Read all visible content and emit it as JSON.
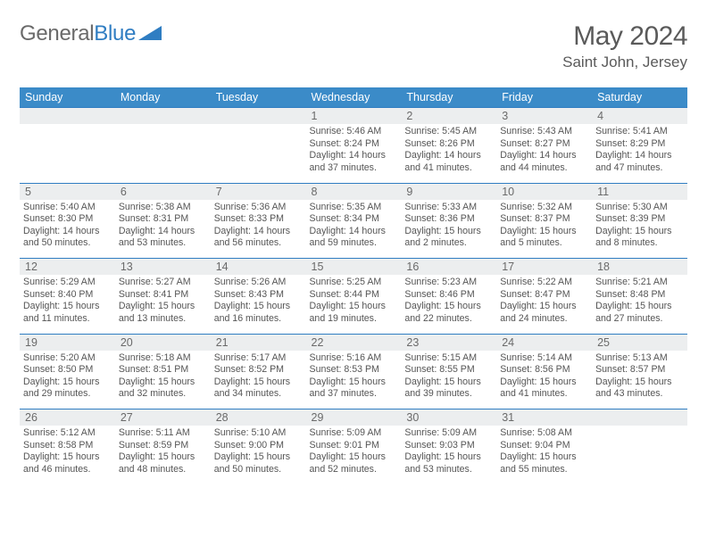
{
  "brand": {
    "part1": "General",
    "part2": "Blue"
  },
  "title": "May 2024",
  "location": "Saint John, Jersey",
  "colors": {
    "header_bg": "#3b8bc8",
    "border": "#2f7dc2",
    "daynum_bg": "#eceeef",
    "text_muted": "#6a6a6a",
    "text_body": "#555555",
    "white": "#ffffff"
  },
  "weekdays": [
    "Sunday",
    "Monday",
    "Tuesday",
    "Wednesday",
    "Thursday",
    "Friday",
    "Saturday"
  ],
  "weeks": [
    [
      null,
      null,
      null,
      {
        "d": 1,
        "sr": "5:46 AM",
        "ss": "8:24 PM",
        "dl": "14 hours and 37 minutes."
      },
      {
        "d": 2,
        "sr": "5:45 AM",
        "ss": "8:26 PM",
        "dl": "14 hours and 41 minutes."
      },
      {
        "d": 3,
        "sr": "5:43 AM",
        "ss": "8:27 PM",
        "dl": "14 hours and 44 minutes."
      },
      {
        "d": 4,
        "sr": "5:41 AM",
        "ss": "8:29 PM",
        "dl": "14 hours and 47 minutes."
      }
    ],
    [
      {
        "d": 5,
        "sr": "5:40 AM",
        "ss": "8:30 PM",
        "dl": "14 hours and 50 minutes."
      },
      {
        "d": 6,
        "sr": "5:38 AM",
        "ss": "8:31 PM",
        "dl": "14 hours and 53 minutes."
      },
      {
        "d": 7,
        "sr": "5:36 AM",
        "ss": "8:33 PM",
        "dl": "14 hours and 56 minutes."
      },
      {
        "d": 8,
        "sr": "5:35 AM",
        "ss": "8:34 PM",
        "dl": "14 hours and 59 minutes."
      },
      {
        "d": 9,
        "sr": "5:33 AM",
        "ss": "8:36 PM",
        "dl": "15 hours and 2 minutes."
      },
      {
        "d": 10,
        "sr": "5:32 AM",
        "ss": "8:37 PM",
        "dl": "15 hours and 5 minutes."
      },
      {
        "d": 11,
        "sr": "5:30 AM",
        "ss": "8:39 PM",
        "dl": "15 hours and 8 minutes."
      }
    ],
    [
      {
        "d": 12,
        "sr": "5:29 AM",
        "ss": "8:40 PM",
        "dl": "15 hours and 11 minutes."
      },
      {
        "d": 13,
        "sr": "5:27 AM",
        "ss": "8:41 PM",
        "dl": "15 hours and 13 minutes."
      },
      {
        "d": 14,
        "sr": "5:26 AM",
        "ss": "8:43 PM",
        "dl": "15 hours and 16 minutes."
      },
      {
        "d": 15,
        "sr": "5:25 AM",
        "ss": "8:44 PM",
        "dl": "15 hours and 19 minutes."
      },
      {
        "d": 16,
        "sr": "5:23 AM",
        "ss": "8:46 PM",
        "dl": "15 hours and 22 minutes."
      },
      {
        "d": 17,
        "sr": "5:22 AM",
        "ss": "8:47 PM",
        "dl": "15 hours and 24 minutes."
      },
      {
        "d": 18,
        "sr": "5:21 AM",
        "ss": "8:48 PM",
        "dl": "15 hours and 27 minutes."
      }
    ],
    [
      {
        "d": 19,
        "sr": "5:20 AM",
        "ss": "8:50 PM",
        "dl": "15 hours and 29 minutes."
      },
      {
        "d": 20,
        "sr": "5:18 AM",
        "ss": "8:51 PM",
        "dl": "15 hours and 32 minutes."
      },
      {
        "d": 21,
        "sr": "5:17 AM",
        "ss": "8:52 PM",
        "dl": "15 hours and 34 minutes."
      },
      {
        "d": 22,
        "sr": "5:16 AM",
        "ss": "8:53 PM",
        "dl": "15 hours and 37 minutes."
      },
      {
        "d": 23,
        "sr": "5:15 AM",
        "ss": "8:55 PM",
        "dl": "15 hours and 39 minutes."
      },
      {
        "d": 24,
        "sr": "5:14 AM",
        "ss": "8:56 PM",
        "dl": "15 hours and 41 minutes."
      },
      {
        "d": 25,
        "sr": "5:13 AM",
        "ss": "8:57 PM",
        "dl": "15 hours and 43 minutes."
      }
    ],
    [
      {
        "d": 26,
        "sr": "5:12 AM",
        "ss": "8:58 PM",
        "dl": "15 hours and 46 minutes."
      },
      {
        "d": 27,
        "sr": "5:11 AM",
        "ss": "8:59 PM",
        "dl": "15 hours and 48 minutes."
      },
      {
        "d": 28,
        "sr": "5:10 AM",
        "ss": "9:00 PM",
        "dl": "15 hours and 50 minutes."
      },
      {
        "d": 29,
        "sr": "5:09 AM",
        "ss": "9:01 PM",
        "dl": "15 hours and 52 minutes."
      },
      {
        "d": 30,
        "sr": "5:09 AM",
        "ss": "9:03 PM",
        "dl": "15 hours and 53 minutes."
      },
      {
        "d": 31,
        "sr": "5:08 AM",
        "ss": "9:04 PM",
        "dl": "15 hours and 55 minutes."
      },
      null
    ]
  ],
  "labels": {
    "sunrise": "Sunrise:",
    "sunset": "Sunset:",
    "daylight": "Daylight:"
  }
}
